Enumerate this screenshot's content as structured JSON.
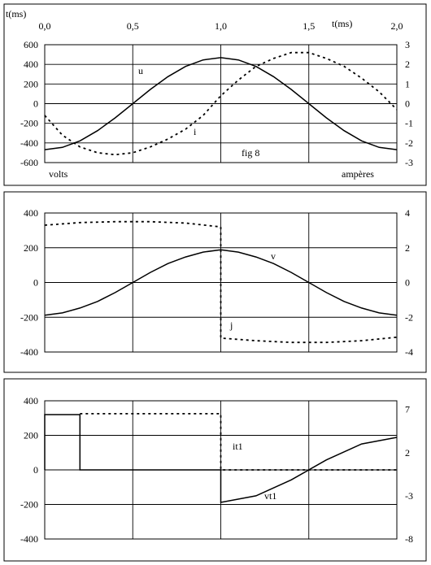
{
  "chart_data": [
    {
      "type": "line",
      "top_axis_label": "t(ms)",
      "top_axis_label_right": "t(ms)",
      "top_ticks": [
        "0,0",
        "0,5",
        "1,0",
        "1,5",
        "2,0"
      ],
      "left_axis_label": "volts",
      "right_axis_label": "ampères",
      "figure_label": "fig 8",
      "xlim": [
        0,
        2
      ],
      "ylim_left": [
        -600,
        600
      ],
      "ylim_right": [
        -3,
        3
      ],
      "y_ticks_left": [
        "600",
        "400",
        "200",
        "0",
        "-200",
        "-400",
        "-600"
      ],
      "y_ticks_right": [
        "3",
        "2",
        "1",
        "0",
        "-1",
        "-2",
        "-3"
      ],
      "grid": true,
      "series": [
        {
          "name": "u",
          "axis": "left",
          "style": "solid",
          "x": [
            0,
            0.1,
            0.2,
            0.3,
            0.4,
            0.5,
            0.6,
            0.7,
            0.8,
            0.9,
            1.0,
            1.1,
            1.2,
            1.3,
            1.4,
            1.5,
            1.6,
            1.7,
            1.8,
            1.9,
            2.0
          ],
          "y": [
            -468,
            -445,
            -379,
            -275,
            -145,
            0,
            145,
            275,
            379,
            445,
            468,
            445,
            379,
            275,
            145,
            0,
            -145,
            -275,
            -379,
            -445,
            -468
          ]
        },
        {
          "name": "i",
          "axis": "right",
          "style": "dashed",
          "x": [
            0,
            0.1,
            0.2,
            0.3,
            0.4,
            0.5,
            0.6,
            0.7,
            0.8,
            0.9,
            1.0,
            1.1,
            1.2,
            1.3,
            1.4,
            1.5,
            1.6,
            1.7,
            1.8,
            1.9,
            2.0
          ],
          "y": [
            -0.6,
            -1.6,
            -2.2,
            -2.5,
            -2.6,
            -2.5,
            -2.2,
            -1.8,
            -1.3,
            -0.6,
            0.4,
            1.2,
            1.9,
            2.3,
            2.6,
            2.6,
            2.3,
            1.9,
            1.3,
            0.6,
            -0.3
          ]
        }
      ],
      "curve_labels": [
        "u",
        "i"
      ]
    },
    {
      "type": "line",
      "xlim": [
        0,
        2
      ],
      "ylim_left": [
        -400,
        400
      ],
      "ylim_right": [
        -4,
        4
      ],
      "y_ticks_left": [
        "400",
        "200",
        "0",
        "-200",
        "-400"
      ],
      "y_ticks_right": [
        "4",
        "2",
        "0",
        "-2",
        "-4"
      ],
      "grid": true,
      "series": [
        {
          "name": "v",
          "axis": "left",
          "style": "solid",
          "x": [
            0,
            0.1,
            0.2,
            0.3,
            0.4,
            0.5,
            0.6,
            0.7,
            0.8,
            0.9,
            1.0,
            1.1,
            1.2,
            1.3,
            1.4,
            1.5,
            1.6,
            1.7,
            1.8,
            1.9,
            2.0
          ],
          "y": [
            -188,
            -175,
            -147,
            -109,
            -58,
            0,
            58,
            109,
            147,
            175,
            188,
            175,
            147,
            109,
            58,
            0,
            -58,
            -109,
            -147,
            -175,
            -188
          ]
        },
        {
          "name": "j",
          "axis": "right",
          "style": "dashed",
          "x": [
            0,
            0.2,
            0.4,
            0.6,
            0.8,
            1.0,
            1.0,
            1.2,
            1.4,
            1.6,
            1.8,
            2.0
          ],
          "y": [
            3.3,
            3.45,
            3.5,
            3.5,
            3.42,
            3.2,
            -3.2,
            -3.35,
            -3.45,
            -3.45,
            -3.35,
            -3.15
          ]
        }
      ],
      "curve_labels": [
        "v",
        "j"
      ]
    },
    {
      "type": "line",
      "xlim": [
        0,
        2
      ],
      "ylim_left": [
        -400,
        400
      ],
      "ylim_right": [
        -8,
        8
      ],
      "y_ticks_left": [
        "400",
        "200",
        "0",
        "-200",
        "-400"
      ],
      "y_ticks_right": [
        "7",
        "2",
        "-3",
        "-8"
      ],
      "grid": true,
      "series": [
        {
          "name": "vt1",
          "axis": "left",
          "style": "solid",
          "x": [
            0,
            0.0,
            0.2,
            0.2,
            1.0,
            1.0,
            1.2,
            1.4,
            1.6,
            1.8,
            2.0
          ],
          "y": [
            0,
            320,
            320,
            0,
            0,
            -188,
            -150,
            -58,
            58,
            150,
            188
          ]
        },
        {
          "name": "it1",
          "axis": "right",
          "style": "dashed",
          "x": [
            0.2,
            0.5,
            0.8,
            1.0,
            1.0,
            1.5,
            2.0
          ],
          "y": [
            6.5,
            6.5,
            6.5,
            6.5,
            0,
            0,
            0
          ]
        }
      ],
      "curve_labels": [
        "it1",
        "vt1"
      ]
    }
  ]
}
